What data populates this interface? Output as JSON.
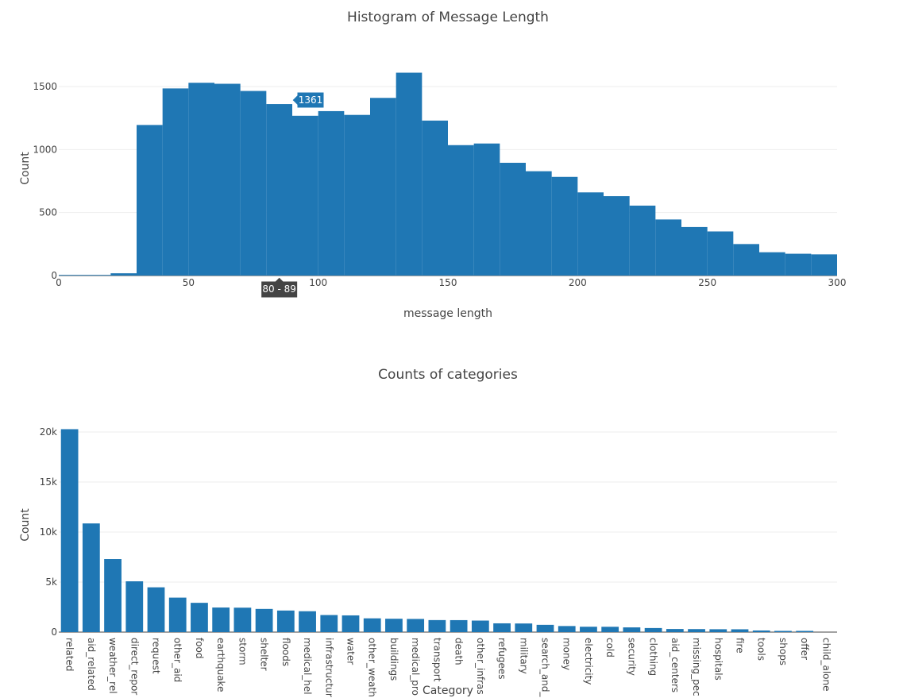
{
  "chart_data": [
    {
      "type": "bar",
      "title": "Histogram of Message Length",
      "xlabel": "message length",
      "ylabel": "Count",
      "xlim": [
        0,
        300
      ],
      "ylim": [
        0,
        1500
      ],
      "xticks": [
        0,
        50,
        100,
        150,
        200,
        250,
        300
      ],
      "yticks": [
        0,
        500,
        1000,
        1500
      ],
      "bin_width": 10,
      "bins": [
        {
          "start": 0,
          "value": 5
        },
        {
          "start": 10,
          "value": 5
        },
        {
          "start": 20,
          "value": 18
        },
        {
          "start": 30,
          "value": 1195
        },
        {
          "start": 40,
          "value": 1485
        },
        {
          "start": 50,
          "value": 1530
        },
        {
          "start": 60,
          "value": 1522
        },
        {
          "start": 70,
          "value": 1465
        },
        {
          "start": 80,
          "value": 1361
        },
        {
          "start": 90,
          "value": 1268
        },
        {
          "start": 100,
          "value": 1305
        },
        {
          "start": 110,
          "value": 1275
        },
        {
          "start": 120,
          "value": 1410
        },
        {
          "start": 130,
          "value": 1610
        },
        {
          "start": 140,
          "value": 1230
        },
        {
          "start": 150,
          "value": 1035
        },
        {
          "start": 160,
          "value": 1048
        },
        {
          "start": 170,
          "value": 895
        },
        {
          "start": 180,
          "value": 828
        },
        {
          "start": 190,
          "value": 783
        },
        {
          "start": 200,
          "value": 660
        },
        {
          "start": 210,
          "value": 630
        },
        {
          "start": 220,
          "value": 555
        },
        {
          "start": 230,
          "value": 445
        },
        {
          "start": 240,
          "value": 385
        },
        {
          "start": 250,
          "value": 350
        },
        {
          "start": 260,
          "value": 250
        },
        {
          "start": 270,
          "value": 185
        },
        {
          "start": 280,
          "value": 173
        },
        {
          "start": 290,
          "value": 168
        }
      ],
      "hover": {
        "value_label": "1361",
        "x_label": "80 - 89",
        "bin_start": 80
      },
      "grid": true
    },
    {
      "type": "bar",
      "title": "Counts of categories",
      "xlabel": "Category",
      "ylabel": "Count",
      "ylim": [
        0,
        20000
      ],
      "yticks": [
        0,
        5000,
        10000,
        15000,
        20000
      ],
      "ytick_labels": [
        "0",
        "5k",
        "10k",
        "15k",
        "20k"
      ],
      "categories": [
        "related",
        "aid_related",
        "weather_rel",
        "direct_repor",
        "request",
        "other_aid",
        "food",
        "earthquake",
        "storm",
        "shelter",
        "floods",
        "medical_hel",
        "infrastructur",
        "water",
        "other_weath",
        "buildings",
        "medical_pro",
        "transport",
        "death",
        "other_infras",
        "refugees",
        "military",
        "search_and_",
        "money",
        "electricity",
        "cold",
        "security",
        "clothing",
        "aid_centers",
        "missing_pec",
        "hospitals",
        "fire",
        "tools",
        "shops",
        "offer",
        "child_alone"
      ],
      "values": [
        20280,
        10860,
        7300,
        5075,
        4475,
        3445,
        2925,
        2455,
        2440,
        2315,
        2155,
        2085,
        1705,
        1670,
        1375,
        1335,
        1315,
        1200,
        1195,
        1150,
        875,
        860,
        725,
        605,
        535,
        530,
        470,
        405,
        310,
        300,
        285,
        280,
        160,
        120,
        120,
        0
      ],
      "grid": true
    }
  ]
}
